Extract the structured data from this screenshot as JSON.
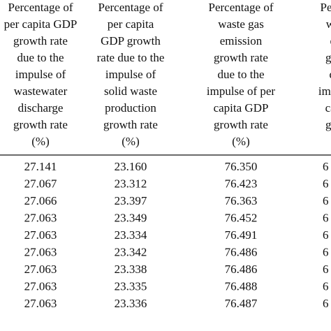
{
  "table": {
    "header": [
      [
        "Percentage of",
        "per capita GDP",
        "growth rate",
        "due to the",
        "impulse of",
        "wastewater",
        "discharge",
        "growth rate",
        "(%)"
      ],
      [
        "Percentage of",
        "per capita",
        "GDP growth",
        "rate due to the",
        "impulse of",
        "solid waste",
        "production",
        "growth rate",
        "(%)"
      ],
      [
        "Percentage of",
        "waste gas",
        "emission",
        "growth rate",
        "due to the",
        "impulse of per",
        "capita GDP",
        "growth rate",
        "(%)"
      ],
      [
        "Percentage of",
        "wastewater",
        "discharge",
        "growth rate",
        "due to the",
        "impulse of per",
        "capita GDP",
        "growth rate",
        "(%)"
      ]
    ],
    "rows": [
      [
        "27.141",
        "23.160",
        "76.350",
        "6"
      ],
      [
        "27.067",
        "23.312",
        "76.423",
        "6"
      ],
      [
        "27.066",
        "23.397",
        "76.363",
        "6"
      ],
      [
        "27.063",
        "23.349",
        "76.452",
        "6"
      ],
      [
        "27.063",
        "23.334",
        "76.491",
        "6"
      ],
      [
        "27.063",
        "23.342",
        "76.486",
        "6"
      ],
      [
        "27.063",
        "23.338",
        "76.486",
        "6"
      ],
      [
        "27.063",
        "23.335",
        "76.488",
        "6"
      ],
      [
        "27.063",
        "23.336",
        "76.487",
        "6"
      ]
    ]
  }
}
